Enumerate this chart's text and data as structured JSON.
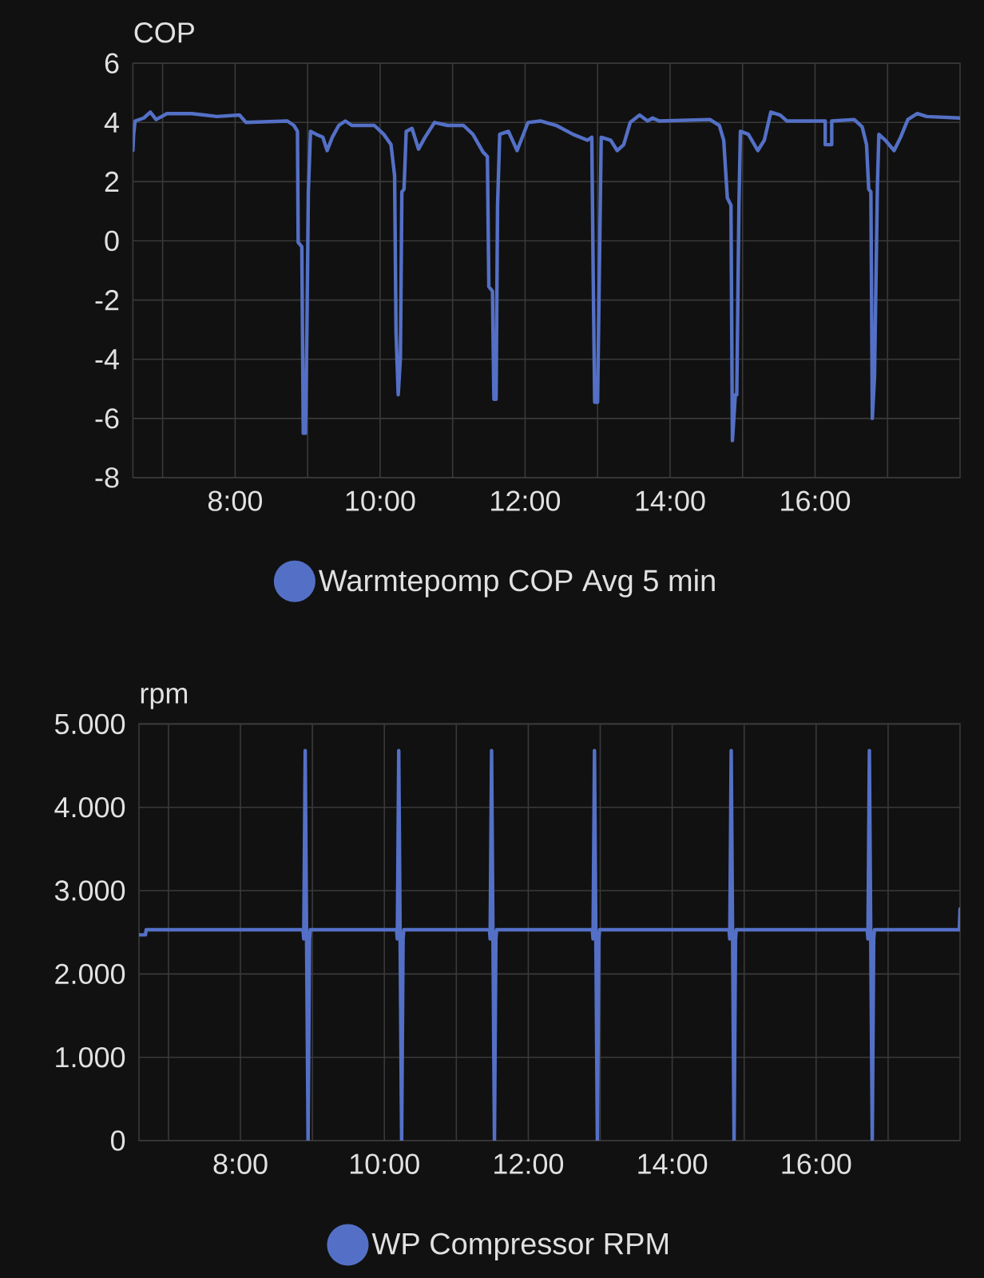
{
  "chart_data": [
    {
      "type": "line",
      "ylabel": "COP",
      "x": [
        6.59,
        6.6,
        6.62,
        6.74,
        6.83,
        6.91,
        7.06,
        7.4,
        7.75,
        8.06,
        8.15,
        8.72,
        8.81,
        8.86,
        8.87,
        8.92,
        8.94,
        8.97,
        8.99,
        9.01,
        9.04,
        9.12,
        9.21,
        9.27,
        9.34,
        9.43,
        9.52,
        9.61,
        9.92,
        10.05,
        10.15,
        10.2,
        10.22,
        10.25,
        10.28,
        10.3,
        10.33,
        10.36,
        10.44,
        10.53,
        10.62,
        10.75,
        10.93,
        11.15,
        11.28,
        11.42,
        11.48,
        11.5,
        11.55,
        11.57,
        11.6,
        11.62,
        11.65,
        11.77,
        11.89,
        12.04,
        12.21,
        12.43,
        12.66,
        12.86,
        12.92,
        12.94,
        12.96,
        13.0,
        13.03,
        13.05,
        13.18,
        13.27,
        13.36,
        13.45,
        13.58,
        13.69,
        13.76,
        13.85,
        14.55,
        14.68,
        14.74,
        14.79,
        14.84,
        14.86,
        14.9,
        14.92,
        14.95,
        14.97,
        15.08,
        15.21,
        15.3,
        15.39,
        15.52,
        15.61,
        16.14,
        16.14,
        16.23,
        16.23,
        16.54,
        16.65,
        16.71,
        16.74,
        16.77,
        16.79,
        16.82,
        16.86,
        16.88,
        16.97,
        17.09,
        17.18,
        17.28,
        17.41,
        17.54,
        18.0
      ],
      "series": [
        {
          "name": "Warmtepomp COP Avg 5 min",
          "color": "#5470c6",
          "values": [
            3.05,
            3.6,
            4.05,
            4.15,
            4.35,
            4.1,
            4.3,
            4.3,
            4.2,
            4.25,
            4.0,
            4.05,
            3.9,
            3.7,
            -0.05,
            -0.2,
            -6.5,
            -6.5,
            -3.1,
            1.65,
            3.7,
            3.6,
            3.5,
            3.05,
            3.5,
            3.9,
            4.05,
            3.9,
            3.9,
            3.6,
            3.25,
            2.2,
            -3.1,
            -5.2,
            -3.95,
            1.65,
            1.75,
            3.7,
            3.8,
            3.1,
            3.5,
            4.0,
            3.9,
            3.9,
            3.6,
            3.0,
            2.85,
            -1.55,
            -1.7,
            -5.35,
            -5.35,
            1.2,
            3.6,
            3.7,
            3.05,
            4.0,
            4.05,
            3.9,
            3.6,
            3.4,
            3.5,
            -1.25,
            -5.45,
            -5.45,
            -0.05,
            3.5,
            3.4,
            3.05,
            3.25,
            4.0,
            4.25,
            4.05,
            4.15,
            4.05,
            4.1,
            3.9,
            3.4,
            1.45,
            1.2,
            -6.75,
            -5.2,
            -5.2,
            1.2,
            3.7,
            3.6,
            3.05,
            3.4,
            4.35,
            4.25,
            4.05,
            4.05,
            3.25,
            3.25,
            4.05,
            4.1,
            3.85,
            3.25,
            1.75,
            1.65,
            -6.0,
            -4.6,
            1.85,
            3.6,
            3.4,
            3.05,
            3.5,
            4.1,
            4.3,
            4.2,
            4.15
          ]
        }
      ],
      "xlim": [
        6.59,
        18
      ],
      "xticks": [
        {
          "value": 7,
          "label": null
        },
        {
          "value": 8,
          "label": "8:00"
        },
        {
          "value": 9,
          "label": null
        },
        {
          "value": 10,
          "label": "10:00"
        },
        {
          "value": 11,
          "label": null
        },
        {
          "value": 12,
          "label": "12:00"
        },
        {
          "value": 13,
          "label": null
        },
        {
          "value": 14,
          "label": "14:00"
        },
        {
          "value": 15,
          "label": null
        },
        {
          "value": 16,
          "label": "16:00"
        },
        {
          "value": 17,
          "label": null
        }
      ],
      "ylim": [
        -8,
        6
      ],
      "yticks": [
        -8,
        -6,
        -4,
        -2,
        0,
        2,
        4,
        6
      ],
      "grid": true,
      "legend": "bottom"
    },
    {
      "type": "line",
      "ylabel": "rpm",
      "x": [
        6.59,
        6.68,
        6.69,
        8.87,
        8.88,
        8.9,
        8.94,
        8.96,
        8.97,
        10.17,
        10.18,
        10.2,
        10.24,
        10.26,
        10.27,
        11.46,
        11.47,
        11.49,
        11.53,
        11.55,
        11.56,
        12.89,
        12.9,
        12.92,
        12.96,
        12.98,
        12.99,
        14.79,
        14.8,
        14.82,
        14.86,
        14.88,
        14.89,
        16.71,
        16.72,
        16.74,
        16.78,
        16.8,
        16.81,
        17.99,
        18.0
      ],
      "series": [
        {
          "name": "WP Compressor RPM",
          "color": "#5470c6",
          "values": [
            2470,
            2470,
            2530,
            2530,
            2420,
            4680,
            0,
            2420,
            2530,
            2530,
            2420,
            4680,
            0,
            2420,
            2530,
            2530,
            2420,
            4680,
            0,
            2420,
            2530,
            2530,
            2420,
            4680,
            0,
            2420,
            2530,
            2530,
            2420,
            4680,
            0,
            2420,
            2530,
            2530,
            2420,
            4680,
            0,
            2420,
            2530,
            2530,
            2780
          ]
        }
      ],
      "xlim": [
        6.59,
        18
      ],
      "xticks": [
        {
          "value": 7,
          "label": null
        },
        {
          "value": 8,
          "label": "8:00"
        },
        {
          "value": 9,
          "label": null
        },
        {
          "value": 10,
          "label": "10:00"
        },
        {
          "value": 11,
          "label": null
        },
        {
          "value": 12,
          "label": "12:00"
        },
        {
          "value": 13,
          "label": null
        },
        {
          "value": 14,
          "label": "14:00"
        },
        {
          "value": 15,
          "label": null
        },
        {
          "value": 16,
          "label": "16:00"
        },
        {
          "value": 17,
          "label": null
        }
      ],
      "ylim": [
        0,
        5000
      ],
      "yticks": [
        0,
        {
          "value": 1000,
          "label": "1.000"
        },
        {
          "value": 2000,
          "label": "2.000"
        },
        {
          "value": 3000,
          "label": "3.000"
        },
        {
          "value": 4000,
          "label": "4.000"
        },
        {
          "value": 5000,
          "label": "5.000"
        }
      ],
      "grid": true,
      "legend": "bottom"
    }
  ]
}
